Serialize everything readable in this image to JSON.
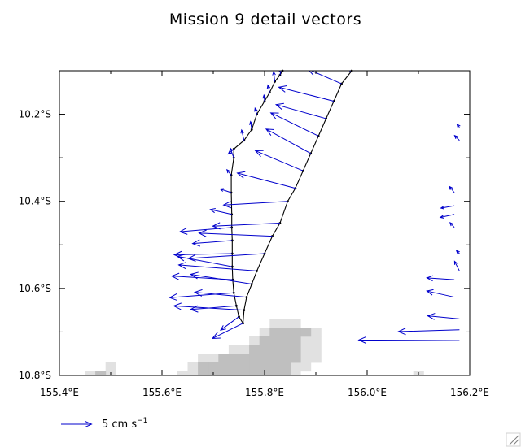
{
  "chart_data": {
    "type": "vector",
    "title": "Mission 9 detail vectors",
    "xlabel": "",
    "ylabel": "",
    "xlim": [
      155.4,
      156.2
    ],
    "ylim": [
      -10.8,
      -10.1
    ],
    "x_tick_values": [
      155.4,
      155.6,
      155.8,
      156.0,
      156.2
    ],
    "x_tick_labels": [
      "155.4°E",
      "155.6°E",
      "155.8°E",
      "156.0°E",
      "156.2°E"
    ],
    "y_tick_values": [
      -10.2,
      -10.4,
      -10.6,
      -10.8
    ],
    "y_tick_labels": [
      "10.2°S",
      "10.4°S",
      "10.6°S",
      "10.8°S"
    ],
    "legend": {
      "label": "5 cm s",
      "label_sup": "−1",
      "reference_speed_cm_s": 5
    },
    "colors": {
      "vectors": "#0000cc",
      "track": "#000000",
      "land_dark": "#bfbfbf",
      "land_light": "#e1e1e1"
    },
    "land_cells_dark": [
      [
        155.88,
        -10.7
      ],
      [
        155.86,
        -10.7
      ],
      [
        155.84,
        -10.7
      ],
      [
        155.82,
        -10.7
      ],
      [
        155.86,
        -10.72
      ],
      [
        155.84,
        -10.72
      ],
      [
        155.82,
        -10.72
      ],
      [
        155.8,
        -10.72
      ],
      [
        155.86,
        -10.74
      ],
      [
        155.84,
        -10.74
      ],
      [
        155.82,
        -10.74
      ],
      [
        155.8,
        -10.74
      ],
      [
        155.78,
        -10.74
      ],
      [
        155.86,
        -10.76
      ],
      [
        155.84,
        -10.76
      ],
      [
        155.82,
        -10.76
      ],
      [
        155.8,
        -10.76
      ],
      [
        155.78,
        -10.76
      ],
      [
        155.76,
        -10.76
      ],
      [
        155.74,
        -10.76
      ],
      [
        155.72,
        -10.76
      ],
      [
        155.84,
        -10.78
      ],
      [
        155.82,
        -10.78
      ],
      [
        155.8,
        -10.78
      ],
      [
        155.78,
        -10.78
      ],
      [
        155.76,
        -10.78
      ],
      [
        155.74,
        -10.78
      ],
      [
        155.72,
        -10.78
      ],
      [
        155.7,
        -10.78
      ],
      [
        155.68,
        -10.78
      ],
      [
        155.84,
        -10.8
      ],
      [
        155.82,
        -10.8
      ],
      [
        155.8,
        -10.8
      ],
      [
        155.78,
        -10.8
      ],
      [
        155.76,
        -10.8
      ],
      [
        155.74,
        -10.8
      ],
      [
        155.72,
        -10.8
      ],
      [
        155.7,
        -10.8
      ],
      [
        155.68,
        -10.8
      ],
      [
        155.48,
        -10.8
      ]
    ],
    "land_cells_light": [
      [
        155.84,
        -10.68
      ],
      [
        155.82,
        -10.68
      ],
      [
        155.86,
        -10.68
      ],
      [
        155.8,
        -10.7
      ],
      [
        155.9,
        -10.7
      ],
      [
        155.9,
        -10.72
      ],
      [
        155.88,
        -10.72
      ],
      [
        155.78,
        -10.72
      ],
      [
        155.9,
        -10.74
      ],
      [
        155.88,
        -10.74
      ],
      [
        155.76,
        -10.74
      ],
      [
        155.74,
        -10.74
      ],
      [
        155.88,
        -10.76
      ],
      [
        155.9,
        -10.76
      ],
      [
        155.7,
        -10.76
      ],
      [
        155.68,
        -10.76
      ],
      [
        155.86,
        -10.78
      ],
      [
        155.88,
        -10.78
      ],
      [
        155.66,
        -10.78
      ],
      [
        155.86,
        -10.8
      ],
      [
        155.66,
        -10.8
      ],
      [
        155.64,
        -10.8
      ],
      [
        155.5,
        -10.78
      ],
      [
        155.5,
        -10.8
      ],
      [
        155.46,
        -10.8
      ],
      [
        156.1,
        -10.8
      ]
    ],
    "track": [
      [
        155.97,
        -10.1
      ],
      [
        155.95,
        -10.13
      ],
      [
        155.935,
        -10.17
      ],
      [
        155.92,
        -10.21
      ],
      [
        155.905,
        -10.25
      ],
      [
        155.89,
        -10.29
      ],
      [
        155.875,
        -10.33
      ],
      [
        155.86,
        -10.37
      ],
      [
        155.845,
        -10.4
      ],
      [
        155.83,
        -10.45
      ],
      [
        155.815,
        -10.48
      ],
      [
        155.8,
        -10.52
      ],
      [
        155.785,
        -10.56
      ],
      [
        155.775,
        -10.59
      ],
      [
        155.765,
        -10.62
      ],
      [
        155.76,
        -10.65
      ],
      [
        155.758,
        -10.68
      ],
      [
        155.75,
        -10.665
      ],
      [
        155.745,
        -10.64
      ],
      [
        155.74,
        -10.61
      ],
      [
        155.738,
        -10.58
      ],
      [
        155.737,
        -10.55
      ],
      [
        155.737,
        -10.52
      ],
      [
        155.737,
        -10.49
      ],
      [
        155.736,
        -10.46
      ],
      [
        155.736,
        -10.43
      ],
      [
        155.735,
        -10.38
      ],
      [
        155.735,
        -10.34
      ],
      [
        155.74,
        -10.3
      ],
      [
        155.74,
        -10.28
      ],
      [
        155.76,
        -10.26
      ],
      [
        155.775,
        -10.235
      ],
      [
        155.785,
        -10.2
      ],
      [
        155.8,
        -10.17
      ],
      [
        155.81,
        -10.15
      ],
      [
        155.82,
        -10.125
      ],
      [
        155.83,
        -10.11
      ],
      [
        155.835,
        -10.1
      ]
    ],
    "vectors": [
      {
        "x": 155.97,
        "y": -10.1,
        "u": -0.6,
        "v": 0.2
      },
      {
        "x": 155.95,
        "y": -10.13,
        "u": -5.5,
        "v": 2.4
      },
      {
        "x": 155.935,
        "y": -10.17,
        "u": -9.0,
        "v": 2.3
      },
      {
        "x": 155.92,
        "y": -10.21,
        "u": -8.2,
        "v": 2.3
      },
      {
        "x": 155.905,
        "y": -10.25,
        "u": -7.8,
        "v": 3.8
      },
      {
        "x": 155.89,
        "y": -10.29,
        "u": -7.3,
        "v": 4.0
      },
      {
        "x": 155.875,
        "y": -10.33,
        "u": -7.8,
        "v": 3.3
      },
      {
        "x": 155.86,
        "y": -10.37,
        "u": -9.5,
        "v": 2.5
      },
      {
        "x": 155.845,
        "y": -10.4,
        "u": -10.5,
        "v": -0.6
      },
      {
        "x": 155.83,
        "y": -10.45,
        "u": -11.0,
        "v": -0.5
      },
      {
        "x": 155.815,
        "y": -10.48,
        "u": -12.0,
        "v": 0.5
      },
      {
        "x": 155.8,
        "y": -10.52,
        "u": -12.5,
        "v": -0.8
      },
      {
        "x": 155.785,
        "y": -10.56,
        "u": -12.8,
        "v": 1.0
      },
      {
        "x": 155.775,
        "y": -10.59,
        "u": -10.0,
        "v": 1.6
      },
      {
        "x": 155.765,
        "y": -10.62,
        "u": -8.5,
        "v": 0.8
      },
      {
        "x": 155.76,
        "y": -10.65,
        "u": -11.5,
        "v": 0.7
      },
      {
        "x": 155.758,
        "y": -10.68,
        "u": -5.0,
        "v": -2.5
      },
      {
        "x": 155.75,
        "y": -10.665,
        "u": -3.0,
        "v": -2.2
      },
      {
        "x": 155.745,
        "y": -10.64,
        "u": -7.5,
        "v": -0.6
      },
      {
        "x": 155.74,
        "y": -10.61,
        "u": -10.5,
        "v": -0.8
      },
      {
        "x": 155.738,
        "y": -10.58,
        "u": -10.0,
        "v": 0.6
      },
      {
        "x": 155.737,
        "y": -10.55,
        "u": -9.0,
        "v": 1.7
      },
      {
        "x": 155.737,
        "y": -10.52,
        "u": -9.5,
        "v": -0.2
      },
      {
        "x": 155.737,
        "y": -10.49,
        "u": -6.5,
        "v": -0.5
      },
      {
        "x": 155.736,
        "y": -10.46,
        "u": -8.5,
        "v": -0.7
      },
      {
        "x": 155.736,
        "y": -10.43,
        "u": -3.5,
        "v": 0.8
      },
      {
        "x": 155.735,
        "y": -10.38,
        "u": -1.8,
        "v": 0.6
      },
      {
        "x": 155.735,
        "y": -10.34,
        "u": -0.7,
        "v": 0.9
      },
      {
        "x": 155.74,
        "y": -10.3,
        "u": -0.6,
        "v": 1.6
      },
      {
        "x": 155.74,
        "y": -10.28,
        "u": -0.9,
        "v": -0.8
      },
      {
        "x": 155.76,
        "y": -10.26,
        "u": -0.4,
        "v": 1.7
      },
      {
        "x": 155.775,
        "y": -10.235,
        "u": -0.2,
        "v": 1.3
      },
      {
        "x": 155.785,
        "y": -10.2,
        "u": -0.3,
        "v": 1.0
      },
      {
        "x": 155.8,
        "y": -10.17,
        "u": -0.1,
        "v": 1.0
      },
      {
        "x": 155.81,
        "y": -10.15,
        "u": -0.3,
        "v": 1.2
      },
      {
        "x": 155.82,
        "y": -10.125,
        "u": -0.2,
        "v": 1.6
      },
      {
        "x": 155.83,
        "y": -10.11,
        "u": 0.2,
        "v": 1.0
      },
      {
        "x": 156.18,
        "y": -10.67,
        "u": -5.2,
        "v": 0.5
      },
      {
        "x": 156.18,
        "y": -10.695,
        "u": -10.0,
        "v": -0.3
      },
      {
        "x": 156.18,
        "y": -10.72,
        "u": -16.5,
        "v": 0.1
      },
      {
        "x": 156.17,
        "y": -10.62,
        "u": -4.5,
        "v": 1.0
      },
      {
        "x": 156.17,
        "y": -10.58,
        "u": -4.5,
        "v": 0.3
      },
      {
        "x": 156.18,
        "y": -10.56,
        "u": -0.8,
        "v": 1.6
      },
      {
        "x": 156.18,
        "y": -10.52,
        "u": -0.5,
        "v": 0.5
      },
      {
        "x": 156.17,
        "y": -10.46,
        "u": -0.7,
        "v": 0.8
      },
      {
        "x": 156.17,
        "y": -10.43,
        "u": -2.3,
        "v": -0.5
      },
      {
        "x": 156.17,
        "y": -10.41,
        "u": -2.2,
        "v": -0.4
      },
      {
        "x": 156.17,
        "y": -10.38,
        "u": -0.8,
        "v": 1.0
      },
      {
        "x": 156.18,
        "y": -10.26,
        "u": -0.8,
        "v": 0.8
      },
      {
        "x": 156.18,
        "y": -10.23,
        "u": -0.4,
        "v": 0.5
      }
    ]
  }
}
